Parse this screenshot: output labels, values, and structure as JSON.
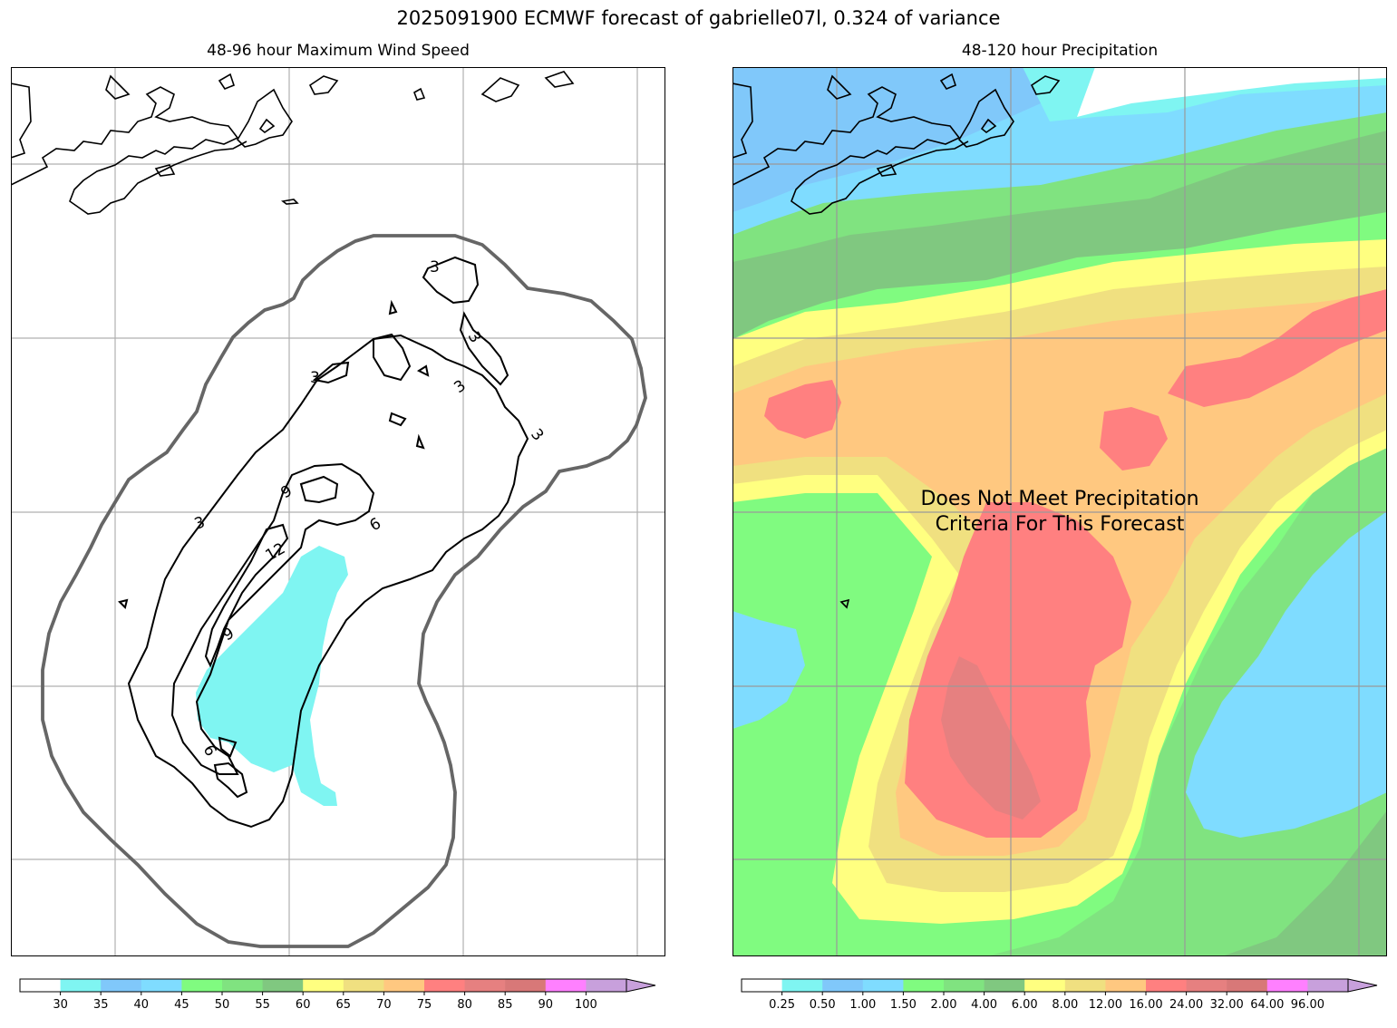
{
  "suptitle": "2025091900 ECMWF forecast of gabrielle07l, 0.324 of variance",
  "left_panel": {
    "title": "48-96 hour Maximum Wind Speed",
    "contour_labels": [
      "3",
      "3",
      "3",
      "3",
      "3",
      "3",
      "6",
      "6",
      "9",
      "9",
      "12"
    ],
    "colorbar": {
      "colors": [
        "#ffffff",
        "#7ff5f2",
        "#80c8fa",
        "#7fdcff",
        "#80fb80",
        "#80e380",
        "#80c880",
        "#ffff80",
        "#f0e080",
        "#ffc880",
        "#ff8080",
        "#e68080",
        "#d87878",
        "#ff80ff",
        "#c8a0dc"
      ],
      "labels": [
        "30",
        "35",
        "40",
        "45",
        "50",
        "55",
        "60",
        "65",
        "70",
        "75",
        "80",
        "85",
        "90",
        "100"
      ]
    }
  },
  "right_panel": {
    "title": "48-120 hour Precipitation",
    "message_line1": "Does Not Meet Precipitation",
    "message_line2": "Criteria For This Forecast",
    "colorbar": {
      "colors": [
        "#ffffff",
        "#7ff5f2",
        "#80c8fa",
        "#7fdcff",
        "#80fb80",
        "#80e380",
        "#80c880",
        "#ffff80",
        "#f0e080",
        "#ffc880",
        "#ff8080",
        "#e68080",
        "#d87878",
        "#ff80ff",
        "#c8a0dc"
      ],
      "labels": [
        "0.25",
        "0.50",
        "1.00",
        "1.50",
        "2.00",
        "4.00",
        "6.00",
        "8.00",
        "12.00",
        "16.00",
        "24.00",
        "32.00",
        "64.00",
        "96.00"
      ]
    }
  }
}
